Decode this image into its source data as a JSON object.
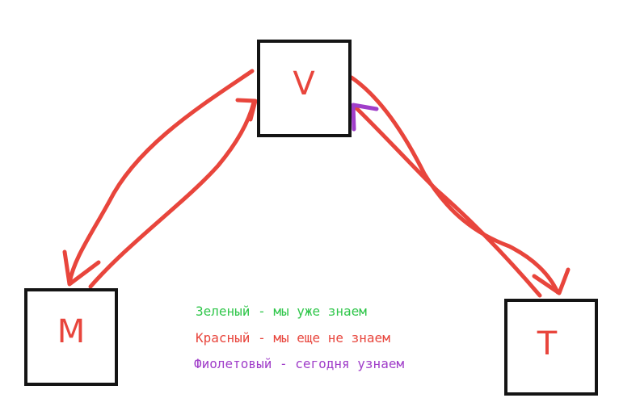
{
  "nodes": {
    "v": "V",
    "m": "M",
    "t": "T"
  },
  "legend": {
    "green": "Зеленый - мы уже знаем",
    "red": "Красный - мы еще не знаем",
    "purple": "Фиолетовый - сегодня узнаем"
  },
  "colors": {
    "green": "#2fc64a",
    "red": "#e8453c",
    "purple": "#a03ec9",
    "box": "#141414"
  }
}
